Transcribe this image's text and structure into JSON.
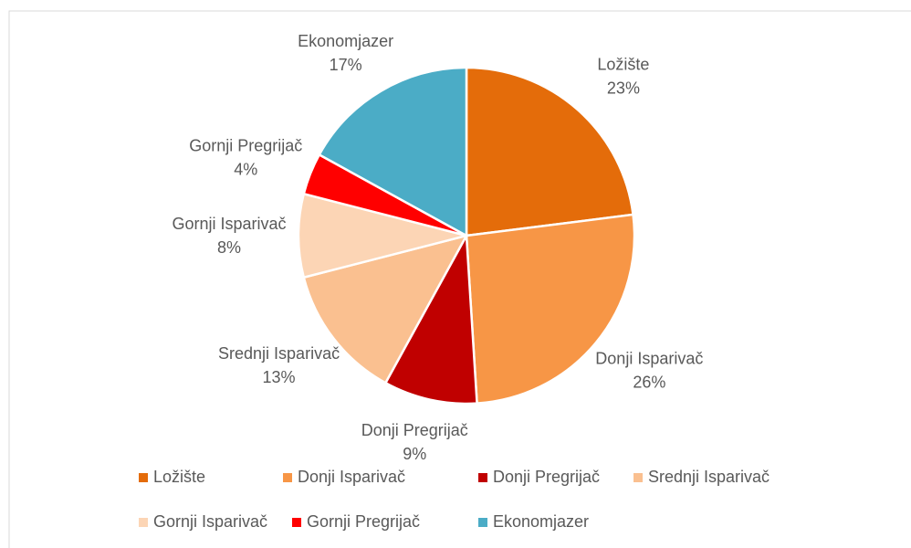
{
  "chart_data": {
    "type": "pie",
    "categories": [
      "Ložište",
      "Donji Isparivač",
      "Donji Pregrijač",
      "Srednji Isparivač",
      "Gornji Isparivač",
      "Gornji Pregrijač",
      "Ekonomjazer"
    ],
    "values": [
      23,
      26,
      9,
      13,
      8,
      4,
      17
    ],
    "value_labels": [
      "23%",
      "26%",
      "9%",
      "13%",
      "8%",
      "4%",
      "17%"
    ],
    "colors": [
      "#e46c0a",
      "#f79646",
      "#c00000",
      "#fac090",
      "#fcd5b5",
      "#ff0000",
      "#4bacc6"
    ],
    "legend": "bottom"
  }
}
